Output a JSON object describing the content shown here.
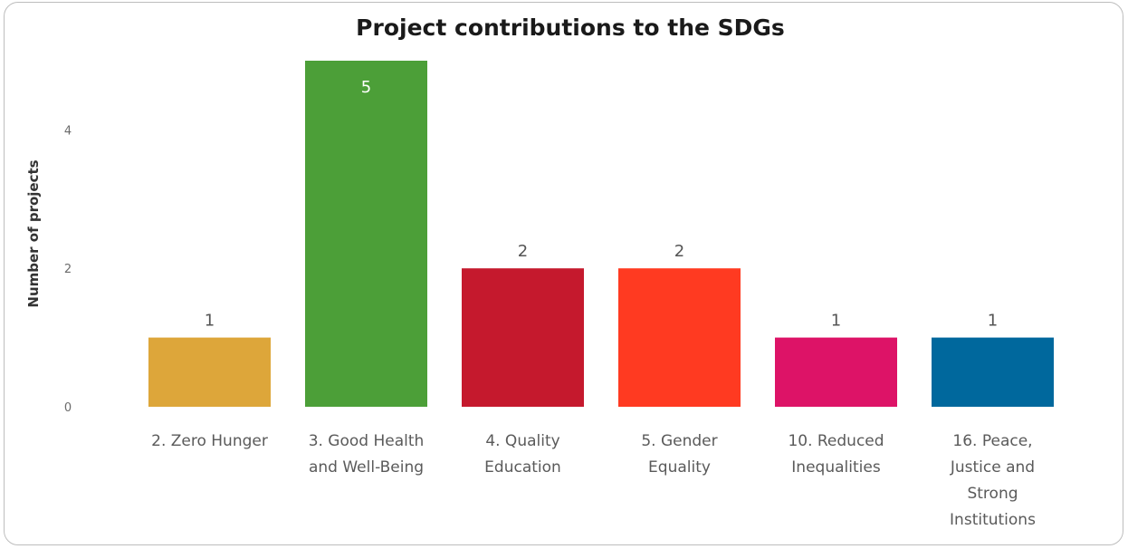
{
  "chart_data": {
    "type": "bar",
    "title": "Project contributions to the SDGs",
    "xlabel": "",
    "ylabel": "Number of projects",
    "ylim": [
      0,
      5
    ],
    "yticks": [
      0,
      2,
      4
    ],
    "grid": false,
    "legend": "none",
    "categories": [
      [
        "2. Zero Hunger"
      ],
      [
        "3. Good Health",
        "and Well-Being"
      ],
      [
        "4. Quality",
        "Education"
      ],
      [
        "5. Gender",
        "Equality"
      ],
      [
        "10. Reduced",
        "Inequalities"
      ],
      [
        "16. Peace,",
        "Justice and",
        "Strong",
        "Institutions"
      ]
    ],
    "values": [
      1,
      5,
      2,
      2,
      1,
      1
    ],
    "value_labels": [
      "1",
      "5",
      "2",
      "2",
      "1",
      "1"
    ],
    "colors": [
      "#DDA63A",
      "#4C9F38",
      "#C5192D",
      "#FF3A21",
      "#DD1367",
      "#00689D"
    ],
    "value_label_inside": [
      false,
      true,
      false,
      false,
      false,
      false
    ],
    "value_label_colors": [
      "#555555",
      "#ffffff",
      "#555555",
      "#555555",
      "#555555",
      "#555555"
    ]
  }
}
